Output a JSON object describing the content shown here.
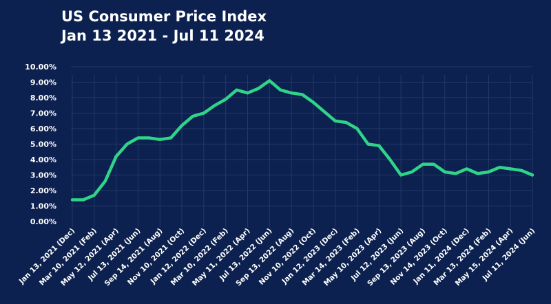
{
  "chart_data": {
    "type": "line",
    "title": "US Consumer Price Index",
    "subtitle": "Jan 13 2021 - Jul 11 2024",
    "xlabel": "",
    "ylabel": "",
    "ylim": [
      0,
      10
    ],
    "yticks": [
      "0.00%",
      "1.00%",
      "2.00%",
      "3.00%",
      "4.00%",
      "5.00%",
      "6.00%",
      "7.00%",
      "8.00%",
      "9.00%",
      "10.00%"
    ],
    "xtick_labels": [
      "Jan 13, 2021 (Dec)",
      "Mar 10, 2021 (Feb)",
      "May 12, 2021 (Apr)",
      "Jul 13, 2021 (Jun)",
      "Sep 14, 2021 (Aug)",
      "Nov 10, 2021 (Oct)",
      "Jan 12, 2022 (Dec)",
      "Mar 10, 2022 (Feb)",
      "May 11, 2022 (Apr)",
      "Jul 13, 2022 (Jun)",
      "Sep 13, 2022 (Aug)",
      "Nov 10, 2022 (Oct)",
      "Jan 12, 2023 (Dec)",
      "Mar 14, 2023 (Feb)",
      "May 10, 2023 (Apr)",
      "Jul 12, 2023 (Jun)",
      "Sep 13, 2023 (Aug)",
      "Nov 14, 2023 (Oct)",
      "Jan 11, 2024 (Dec)",
      "Mar 13, 2024 (Feb)",
      "May 15, 2024 (Apr)",
      "Jul 11, 2024 (Jun)"
    ],
    "grid": true,
    "line_color": "#2fd488",
    "values": [
      1.4,
      1.4,
      1.7,
      2.6,
      4.2,
      5.0,
      5.4,
      5.4,
      5.3,
      5.4,
      6.2,
      6.8,
      7.0,
      7.5,
      7.9,
      8.5,
      8.3,
      8.6,
      9.1,
      8.5,
      8.3,
      8.2,
      7.7,
      7.1,
      6.5,
      6.4,
      6.0,
      5.0,
      4.9,
      4.0,
      3.0,
      3.2,
      3.7,
      3.7,
      3.2,
      3.1,
      3.4,
      3.1,
      3.2,
      3.5,
      3.4,
      3.3,
      3.0
    ]
  }
}
